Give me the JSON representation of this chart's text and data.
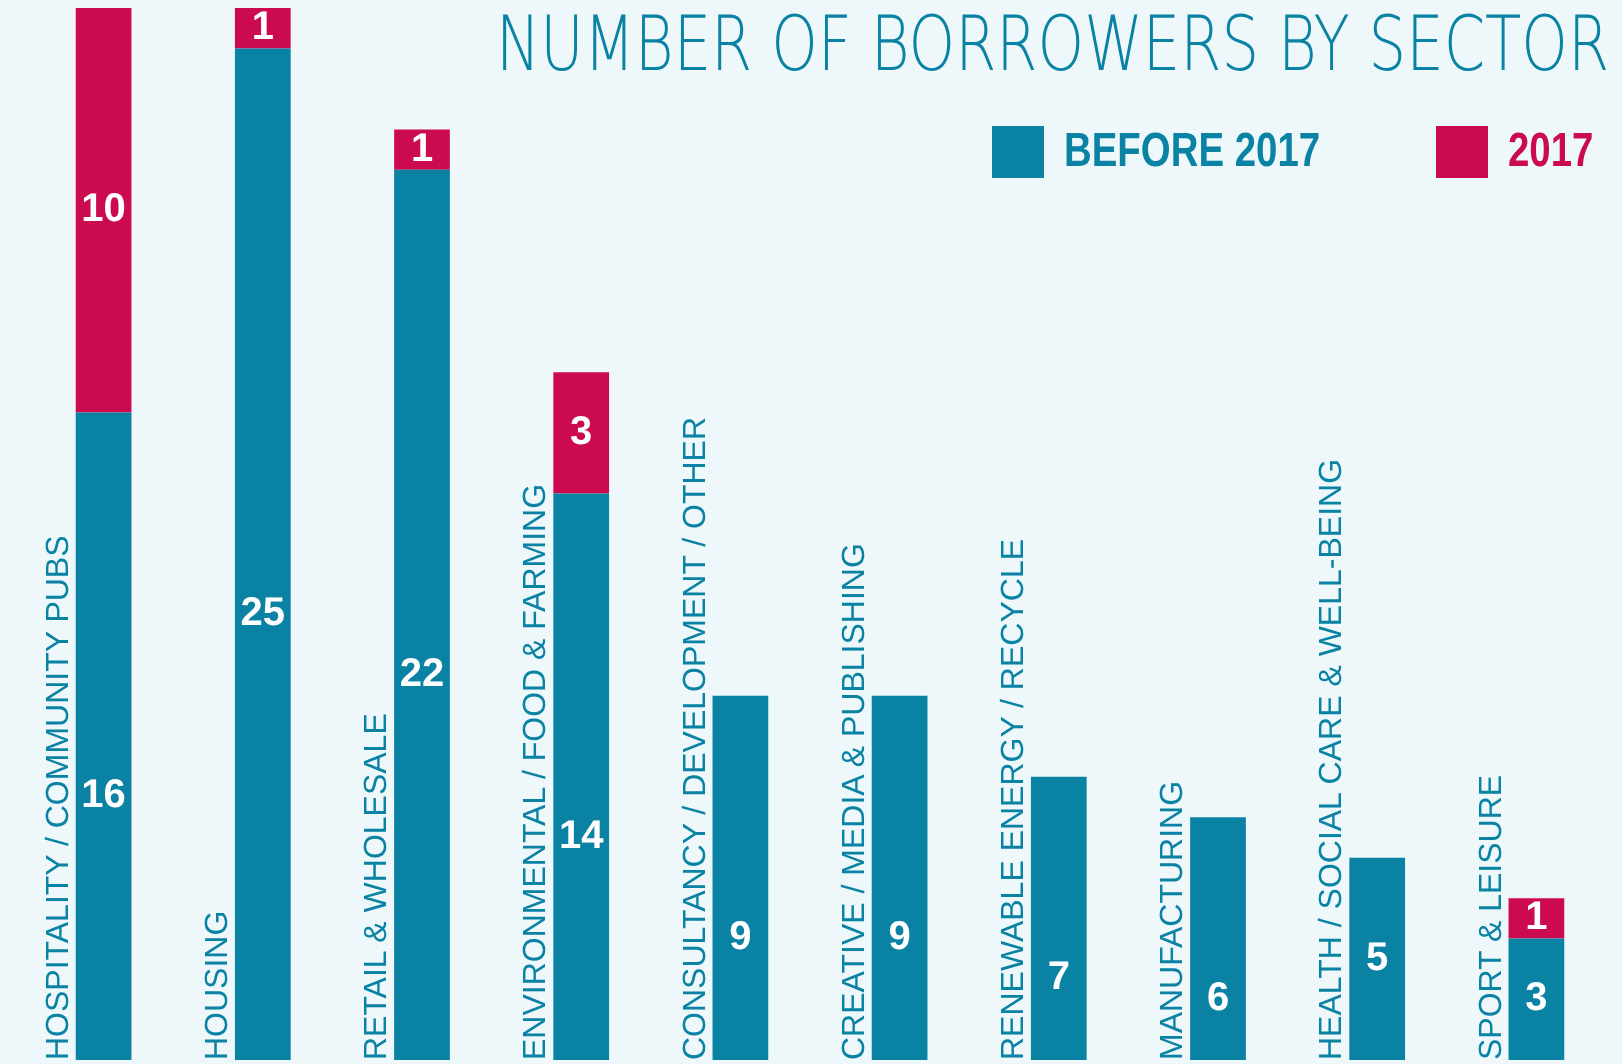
{
  "chart_data": {
    "type": "bar",
    "title": "NUMBER OF BORROWERS BY SECTOR",
    "stacked": true,
    "data_labels": true,
    "legend": "top right",
    "categories": [
      "HOSPITALITY / COMMUNITY PUBS",
      "HOUSING",
      "RETAIL & WHOLESALE",
      "ENVIRONMENTAL / FOOD & FARMING",
      "CONSULTANCY / DEVELOPMENT / OTHER",
      "CREATIVE / MEDIA & PUBLISHING",
      "RENEWABLE ENERGY / RECYCLE",
      "MANUFACTURING",
      "HEALTH / SOCIAL CARE & WELL-BEING",
      "SPORT & LEISURE"
    ],
    "series": [
      {
        "name": "BEFORE 2017",
        "color": "#0a82a4",
        "values": [
          16,
          25,
          22,
          14,
          9,
          9,
          7,
          6,
          5,
          3
        ]
      },
      {
        "name": "2017",
        "color": "#cc0a50",
        "values": [
          10,
          1,
          1,
          3,
          null,
          null,
          null,
          null,
          null,
          1
        ]
      }
    ]
  }
}
